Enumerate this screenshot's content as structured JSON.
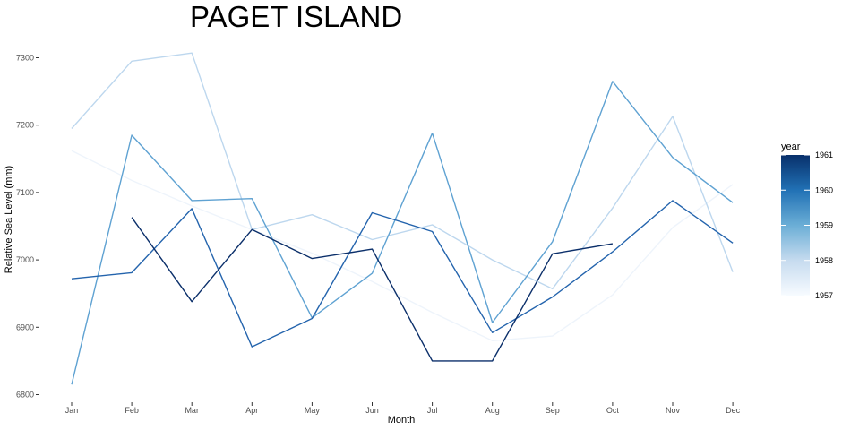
{
  "chart_data": {
    "type": "line",
    "title": "PAGET ISLAND",
    "xlabel": "Month",
    "ylabel": "Relative Sea Level (mm)",
    "categories": [
      "Jan",
      "Feb",
      "Mar",
      "Apr",
      "May",
      "Jun",
      "Jul",
      "Aug",
      "Sep",
      "Oct",
      "Nov",
      "Dec"
    ],
    "ylim": [
      6790,
      7320
    ],
    "yticks": [
      6800,
      6900,
      7000,
      7100,
      7200,
      7300
    ],
    "ytick_labels": [
      "6800",
      "6900",
      "7000",
      "7100",
      "7200",
      "7300"
    ],
    "grid": false,
    "legend": {
      "title": "year",
      "type": "colorbar",
      "position": "right",
      "range": [
        1957,
        1961
      ],
      "ticks": [
        1957,
        1958,
        1959,
        1960,
        1961
      ],
      "tick_labels": [
        "1957",
        "1958",
        "1959",
        "1960",
        "1961"
      ],
      "low_color": "#f7fbff",
      "high_color": "#08306b"
    },
    "series": [
      {
        "year": 1957,
        "color": "#eef4fb",
        "values": [
          7162,
          7118,
          7080,
          7045,
          7010,
          6968,
          6922,
          6880,
          6887,
          6948,
          7048,
          7112
        ]
      },
      {
        "year": 1958,
        "color": "#bdd7ee",
        "values": [
          7195,
          7295,
          7307,
          7045,
          7067,
          7030,
          7052,
          7000,
          6957,
          7077,
          7213,
          6982
        ]
      },
      {
        "year": 1959,
        "color": "#5fa2d2",
        "values": [
          6815,
          7185,
          7088,
          7091,
          6914,
          6980,
          7188,
          6907,
          7027,
          7265,
          7152,
          7085
        ]
      },
      {
        "year": 1960,
        "color": "#2464ad",
        "values": [
          6972,
          6981,
          7076,
          6871,
          6913,
          7070,
          7042,
          6892,
          6945,
          7012,
          7088,
          7025
        ]
      },
      {
        "year": 1961,
        "color": "#0b2f6a",
        "values": [
          null,
          7063,
          6938,
          7045,
          7002,
          7016,
          6850,
          6850,
          7009,
          7024,
          null,
          null
        ]
      }
    ]
  }
}
